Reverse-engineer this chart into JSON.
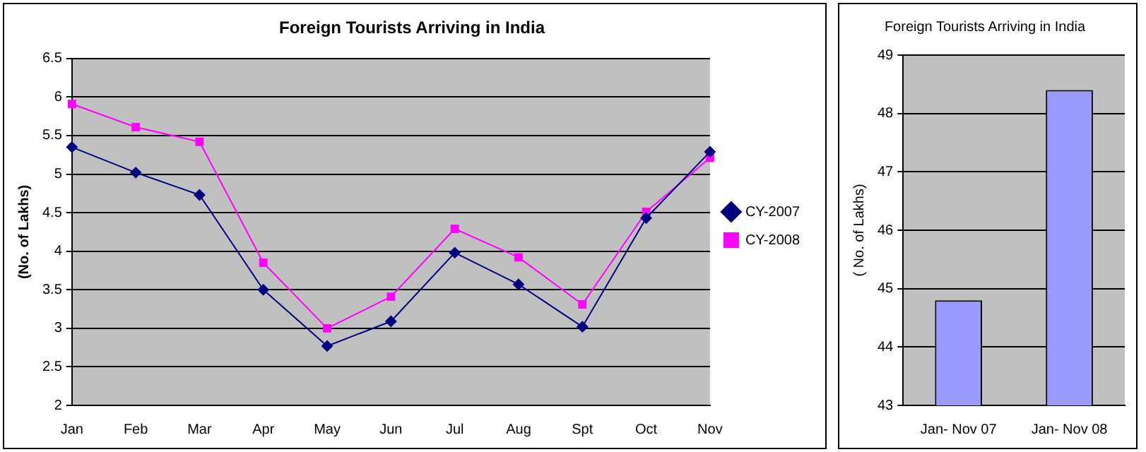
{
  "chart_data": [
    {
      "type": "line",
      "title": "Foreign Tourists Arriving in India",
      "ylabel": "(No. of Lakhs)",
      "categories": [
        "Jan",
        "Feb",
        "Mar",
        "Apr",
        "May",
        "Jun",
        "Jul",
        "Aug",
        "Spt",
        "Oct",
        "Nov"
      ],
      "series": [
        {
          "name": "CY-2007",
          "color": "#000080",
          "marker": "diamond",
          "values": [
            5.35,
            5.02,
            4.73,
            3.5,
            2.77,
            3.09,
            3.98,
            3.57,
            3.02,
            4.43,
            5.29
          ]
        },
        {
          "name": "CY-2008",
          "color": "#ff00ff",
          "marker": "square",
          "values": [
            5.91,
            5.61,
            5.42,
            3.85,
            3.0,
            3.41,
            4.29,
            3.92,
            3.31,
            4.51,
            5.21
          ]
        }
      ],
      "ylim": [
        2,
        6.5
      ],
      "yticks": [
        2,
        2.5,
        3,
        3.5,
        4,
        4.5,
        5,
        5.5,
        6,
        6.5
      ],
      "grid": "y",
      "legend": "right",
      "line_style": "solid"
    },
    {
      "type": "bar",
      "title": "Foreign Tourists Arriving in India",
      "ylabel": "( No. of Lakhs)",
      "categories": [
        "Jan- Nov 07",
        "Jan- Nov 08"
      ],
      "values": [
        44.8,
        48.4
      ],
      "color": "#9999ff",
      "ylim": [
        43,
        49
      ],
      "yticks": [
        43,
        44,
        45,
        46,
        47,
        48,
        49
      ],
      "grid": "y",
      "legend": false
    }
  ]
}
